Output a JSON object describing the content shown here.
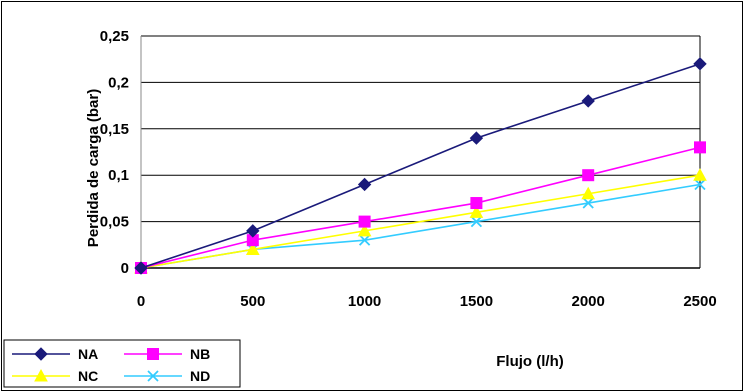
{
  "chart_data": {
    "type": "line",
    "title": "",
    "xlabel": "Flujo (l/h)",
    "ylabel": "Perdida de carga (bar)",
    "x": [
      0,
      500,
      1000,
      1500,
      2000,
      2500
    ],
    "xlim": [
      0,
      2500
    ],
    "ylim": [
      0,
      0.25
    ],
    "x_ticks": [
      "0",
      "500",
      "1000",
      "1500",
      "2000",
      "2500"
    ],
    "y_ticks": [
      "0",
      "0,05",
      "0,1",
      "0,15",
      "0,2",
      "0,25"
    ],
    "grid": "horizontal",
    "legend_position": "bottom-left",
    "series": [
      {
        "name": "NA",
        "color": "#1a1a7a",
        "marker": "diamond",
        "values": [
          0,
          0.04,
          0.09,
          0.14,
          0.18,
          0.22
        ]
      },
      {
        "name": "NB",
        "color": "#ff00ff",
        "marker": "square",
        "values": [
          0,
          0.03,
          0.05,
          0.07,
          0.1,
          0.13
        ]
      },
      {
        "name": "NC",
        "color": "#ffff00",
        "marker": "triangle",
        "values": [
          0,
          0.02,
          0.04,
          0.06,
          0.08,
          0.1
        ]
      },
      {
        "name": "ND",
        "color": "#33ccff",
        "marker": "x",
        "values": [
          0,
          0.02,
          0.03,
          0.05,
          0.07,
          0.09
        ]
      }
    ]
  }
}
